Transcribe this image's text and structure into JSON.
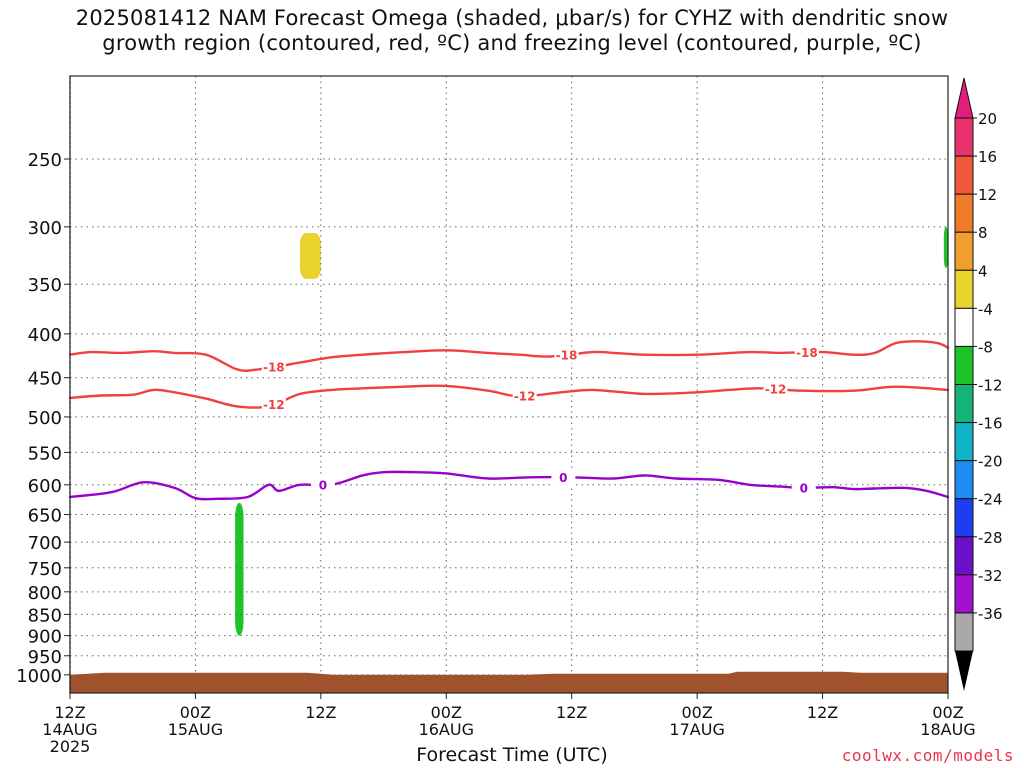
{
  "title": {
    "line1": "2025081412 NAM Forecast Omega (shaded, μbar/s) for CYHZ with dendritic snow",
    "line2": "growth region (contoured, red, ºC) and freezing level (contoured, purple, ºC)"
  },
  "x_axis_title": "Forecast Time (UTC)",
  "credit": "coolwx.com/models",
  "chart_data": {
    "type": "time-height cross-section",
    "x_ticks": [
      {
        "hour": 0,
        "l1": "12Z",
        "l2": "14AUG",
        "l3": "2025"
      },
      {
        "hour": 12,
        "l1": "00Z",
        "l2": "15AUG",
        "l3": ""
      },
      {
        "hour": 24,
        "l1": "12Z",
        "l2": "",
        "l3": ""
      },
      {
        "hour": 36,
        "l1": "00Z",
        "l2": "16AUG",
        "l3": ""
      },
      {
        "hour": 48,
        "l1": "12Z",
        "l2": "",
        "l3": ""
      },
      {
        "hour": 60,
        "l1": "00Z",
        "l2": "17AUG",
        "l3": ""
      },
      {
        "hour": 72,
        "l1": "12Z",
        "l2": "",
        "l3": ""
      },
      {
        "hour": 84,
        "l1": "00Z",
        "l2": "18AUG",
        "l3": ""
      }
    ],
    "x_range_hours": [
      0,
      84
    ],
    "y_axis": {
      "scale": "log-pressure",
      "unit": "hPa",
      "ticks": [
        250,
        300,
        350,
        400,
        450,
        500,
        550,
        600,
        650,
        700,
        750,
        800,
        850,
        900,
        950,
        1000
      ],
      "range": [
        200,
        1050
      ]
    },
    "grid": true,
    "contours": [
      {
        "label": "-18",
        "color": "#f04040",
        "points": [
          [
            0,
            423
          ],
          [
            2,
            420
          ],
          [
            5,
            421
          ],
          [
            8,
            419
          ],
          [
            10,
            421
          ],
          [
            13,
            423
          ],
          [
            16,
            440
          ],
          [
            18,
            440
          ],
          [
            22,
            432
          ],
          [
            25,
            426
          ],
          [
            28,
            423
          ],
          [
            32,
            420
          ],
          [
            36,
            418
          ],
          [
            40,
            421
          ],
          [
            43,
            423
          ],
          [
            46,
            425
          ],
          [
            50,
            420
          ],
          [
            52,
            421
          ],
          [
            55,
            423
          ],
          [
            60,
            423
          ],
          [
            65,
            420
          ],
          [
            68,
            421
          ],
          [
            72,
            420
          ],
          [
            75,
            423
          ],
          [
            77,
            421
          ],
          [
            79,
            410
          ],
          [
            81,
            408
          ],
          [
            83,
            410
          ],
          [
            84,
            415
          ]
        ],
        "label_hours": [
          19.5,
          47.5,
          70.5
        ]
      },
      {
        "label": "-12",
        "color": "#f04040",
        "points": [
          [
            0,
            475
          ],
          [
            3,
            472
          ],
          [
            6,
            471
          ],
          [
            8,
            465
          ],
          [
            10,
            468
          ],
          [
            13,
            476
          ],
          [
            16,
            486
          ],
          [
            19,
            486
          ],
          [
            22,
            470
          ],
          [
            25,
            465
          ],
          [
            28,
            463
          ],
          [
            32,
            461
          ],
          [
            36,
            460
          ],
          [
            40,
            466
          ],
          [
            43,
            473
          ],
          [
            47,
            468
          ],
          [
            50,
            465
          ],
          [
            55,
            470
          ],
          [
            60,
            468
          ],
          [
            63,
            465
          ],
          [
            66,
            463
          ],
          [
            70,
            466
          ],
          [
            75,
            466
          ],
          [
            79,
            461
          ],
          [
            84,
            465
          ]
        ],
        "label_hours": [
          19.5,
          43.5,
          67.5
        ]
      },
      {
        "label": "0",
        "color": "#9900cc",
        "points": [
          [
            0,
            620
          ],
          [
            4,
            612
          ],
          [
            7,
            596
          ],
          [
            10,
            605
          ],
          [
            12,
            622
          ],
          [
            14,
            623
          ],
          [
            17,
            620
          ],
          [
            19,
            600
          ],
          [
            20,
            610
          ],
          [
            22,
            600
          ],
          [
            25,
            600
          ],
          [
            28,
            585
          ],
          [
            30,
            580
          ],
          [
            33,
            580
          ],
          [
            36,
            582
          ],
          [
            40,
            590
          ],
          [
            44,
            588
          ],
          [
            48,
            588
          ],
          [
            52,
            590
          ],
          [
            55,
            585
          ],
          [
            58,
            590
          ],
          [
            62,
            592
          ],
          [
            65,
            600
          ],
          [
            68,
            603
          ],
          [
            70,
            605
          ],
          [
            73,
            604
          ],
          [
            75,
            607
          ],
          [
            77,
            606
          ],
          [
            80,
            605
          ],
          [
            82,
            610
          ],
          [
            84,
            620
          ]
        ],
        "label_hours": [
          24.2,
          47.2,
          70.2
        ]
      }
    ],
    "shaded_regions": [
      {
        "name": "yellow-omega",
        "color": "#e8d42c",
        "hour_range": [
          22,
          24
        ],
        "pressure_range": [
          305,
          345
        ],
        "bin": "4 to 8"
      },
      {
        "name": "green-omega-low",
        "color": "#1cc428",
        "hour_range": [
          15.8,
          16.6
        ],
        "pressure_range": [
          630,
          900
        ],
        "bin": "-4 to -8"
      },
      {
        "name": "green-omega-edge",
        "color": "#1cc428",
        "hour_range": [
          83.6,
          84
        ],
        "pressure_range": [
          300,
          335
        ],
        "bin": "-4 to -8"
      }
    ],
    "terrain": {
      "color": "#a0522d",
      "pressure_top": 1000
    },
    "colorbar": {
      "labels": [
        "20",
        "16",
        "12",
        "8",
        "4",
        "-4",
        "-8",
        "-12",
        "-16",
        "-20",
        "-24",
        "-28",
        "-32",
        "-36"
      ],
      "colors": [
        "#e8336e",
        "#f05a3c",
        "#f07b28",
        "#f09e30",
        "#e8d42c",
        "#ffffff",
        "#1cc428",
        "#14b47a",
        "#10b4c4",
        "#1e8cf0",
        "#1e3cf0",
        "#6a10c8",
        "#a010d0",
        "#a9a9a9"
      ],
      "top_arrow_color": "#e01e7e",
      "bottom_arrow_color": "#000000"
    }
  }
}
